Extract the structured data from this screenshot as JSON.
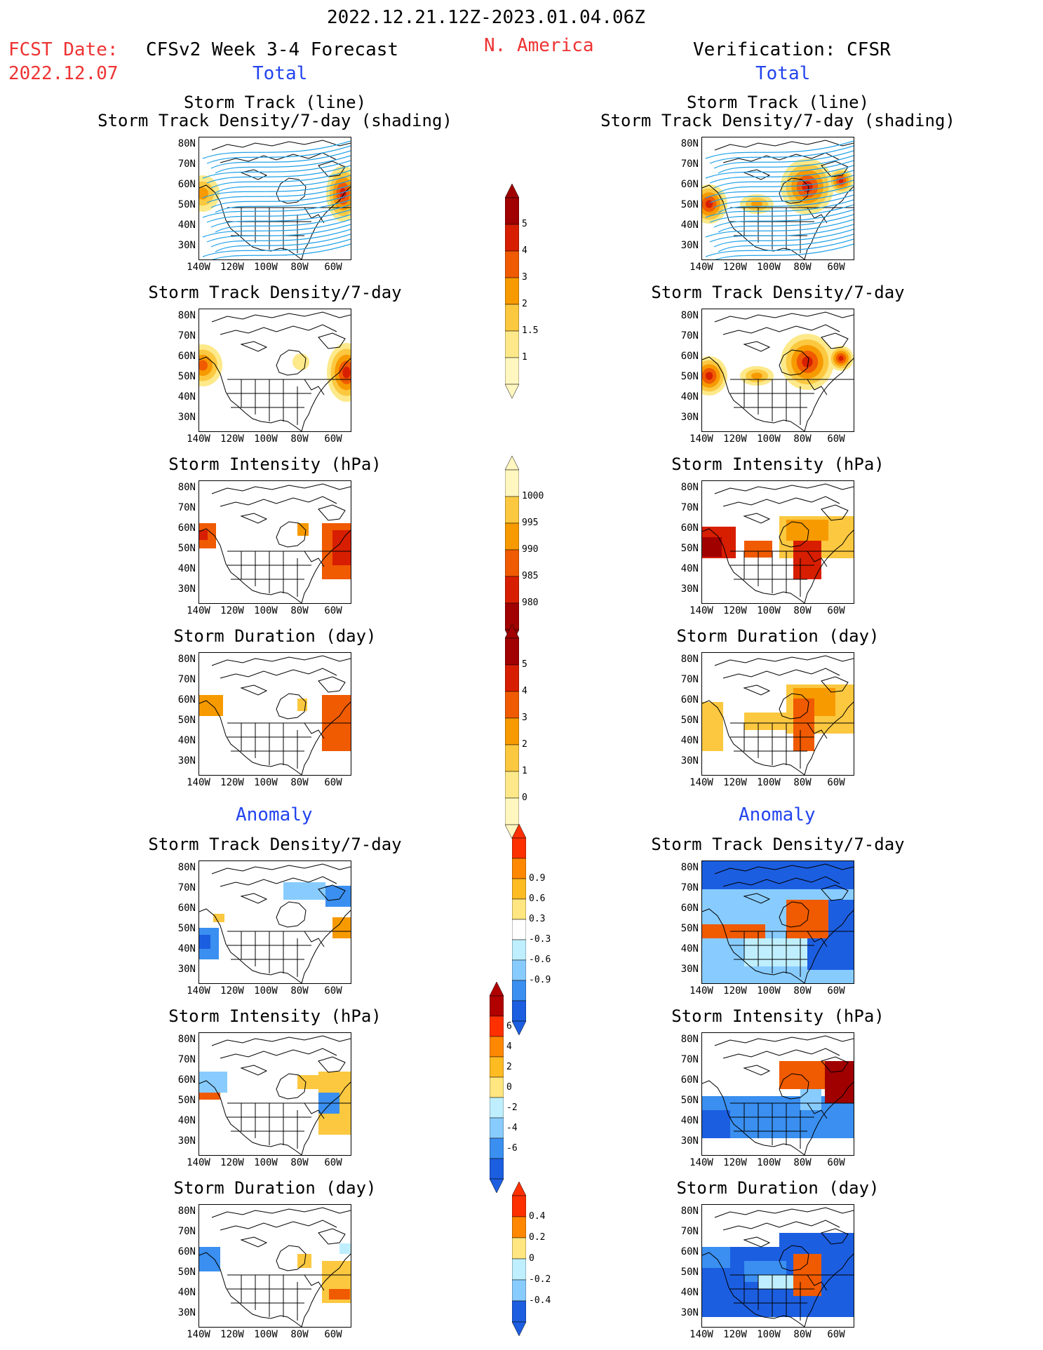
{
  "header": {
    "period": "2022.12.21.12Z-2023.01.04.06Z",
    "fcst_label": "FCST Date:",
    "fcst_date": "2022.12.07",
    "left_title": "CFSv2 Week 3-4 Forecast",
    "region": "N. America",
    "right_title": "Verification: CFSR"
  },
  "sections": {
    "total": "Total",
    "anomaly": "Anomaly"
  },
  "panel_titles": {
    "track_line": "Storm Track (line)",
    "track_shading": "Storm Track Density/7-day (shading)",
    "density": "Storm Track Density/7-day",
    "intensity": "Storm Intensity (hPa)",
    "duration": "Storm Duration (day)"
  },
  "axes": {
    "lat_ticks": [
      "80N",
      "70N",
      "60N",
      "50N",
      "40N",
      "30N"
    ],
    "lon_ticks": [
      "140W",
      "120W",
      "100W",
      "80W",
      "60W"
    ]
  },
  "colorbars": {
    "density_total": {
      "labels": [
        "5",
        "4",
        "3",
        "2",
        "1.5",
        "1"
      ],
      "colors": [
        "#a00000",
        "#d81e00",
        "#f05a00",
        "#f79a00",
        "#fbc840",
        "#fde98a",
        "#fff6c0"
      ]
    },
    "intensity_total": {
      "labels": [
        "1000",
        "995",
        "990",
        "985",
        "980"
      ],
      "colors": [
        "#fff6c0",
        "#fbc840",
        "#f79a00",
        "#f05a00",
        "#d81e00",
        "#a00000"
      ]
    },
    "duration_total": {
      "labels": [
        "5",
        "4",
        "3",
        "2",
        "1",
        "0"
      ],
      "colors": [
        "#a00000",
        "#d81e00",
        "#f05a00",
        "#f79a00",
        "#fbc840",
        "#fde98a",
        "#fff6c0"
      ]
    },
    "density_anom": {
      "labels": [
        "0.9",
        "0.6",
        "0.3",
        "-0.3",
        "-0.6",
        "-0.9"
      ],
      "colors": [
        "#ff3000",
        "#ff8800",
        "#ffbb22",
        "#ffe680",
        "#ffffff",
        "#bfefff",
        "#88ccff",
        "#3a8ff0",
        "#1c5ee0"
      ]
    },
    "intensity_anom": {
      "labels": [
        "6",
        "4",
        "2",
        "0",
        "-2",
        "-4",
        "-6"
      ],
      "colors": [
        "#b00000",
        "#ff3000",
        "#ff8800",
        "#ffbb22",
        "#ffe680",
        "#bfefff",
        "#88ccff",
        "#3a8ff0",
        "#1c5ee0"
      ]
    },
    "duration_anom": {
      "labels": [
        "0.4",
        "0.2",
        "0",
        "-0.2",
        "-0.4"
      ],
      "colors": [
        "#ff3000",
        "#ff8800",
        "#ffe680",
        "#bfefff",
        "#88ccff",
        "#1c5ee0"
      ]
    }
  },
  "palette": {
    "dark_red": "#a00000",
    "red": "#d81e00",
    "orange_red": "#f05a00",
    "orange": "#f79a00",
    "light_orange": "#fbc840",
    "yellow": "#fde98a",
    "pale": "#fff6c0",
    "dark_blue": "#1c5ee0",
    "blue": "#3a8ff0",
    "light_blue": "#88ccff",
    "pale_blue": "#bfefff",
    "track_line": "#1ea0e8"
  }
}
